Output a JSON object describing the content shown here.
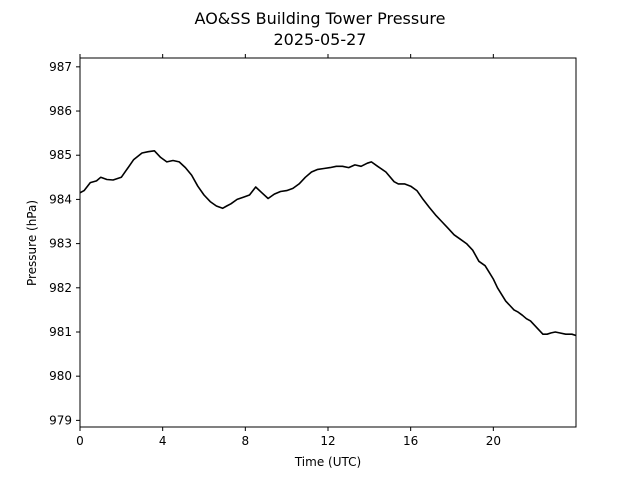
{
  "chart_data": {
    "type": "line",
    "title": "AO&SS Building Tower Pressure",
    "subtitle": "2025-05-27",
    "xlabel": "Time (UTC)",
    "ylabel": "Pressure (hPa)",
    "xlim": [
      0,
      24
    ],
    "ylim": [
      978.85,
      987.2
    ],
    "xticks": [
      0,
      4,
      8,
      12,
      16,
      20
    ],
    "yticks": [
      979,
      980,
      981,
      982,
      983,
      984,
      985,
      986,
      987
    ],
    "grid": false,
    "legend": "none",
    "series": [
      {
        "color": "#000000",
        "x": [
          0,
          0.2,
          0.5,
          0.8,
          1.0,
          1.3,
          1.6,
          2.0,
          2.3,
          2.6,
          3.0,
          3.3,
          3.6,
          3.9,
          4.2,
          4.5,
          4.8,
          5.1,
          5.4,
          5.7,
          6.0,
          6.3,
          6.6,
          6.9,
          7.1,
          7.3,
          7.6,
          7.9,
          8.2,
          8.5,
          8.8,
          9.1,
          9.4,
          9.7,
          10.0,
          10.3,
          10.6,
          10.9,
          11.2,
          11.5,
          11.8,
          12.1,
          12.4,
          12.7,
          13.0,
          13.3,
          13.6,
          13.9,
          14.1,
          14.4,
          14.8,
          15.2,
          15.4,
          15.7,
          16.0,
          16.3,
          16.6,
          16.9,
          17.2,
          17.5,
          17.8,
          18.1,
          18.4,
          18.7,
          19.0,
          19.3,
          19.6,
          19.8,
          20.0,
          20.2,
          20.4,
          20.6,
          20.8,
          21.0,
          21.2,
          21.4,
          21.6,
          21.8,
          22.0,
          22.2,
          22.4,
          22.6,
          22.8,
          23.0,
          23.2,
          23.5,
          23.8,
          24.0
        ],
        "y": [
          984.15,
          984.2,
          984.38,
          984.42,
          984.5,
          984.45,
          984.44,
          984.5,
          984.7,
          984.9,
          985.05,
          985.08,
          985.1,
          984.95,
          984.85,
          984.88,
          984.85,
          984.72,
          984.55,
          984.3,
          984.1,
          983.95,
          983.85,
          983.8,
          983.85,
          983.9,
          984.0,
          984.05,
          984.1,
          984.28,
          984.15,
          984.02,
          984.12,
          984.18,
          984.2,
          984.25,
          984.35,
          984.5,
          984.62,
          984.68,
          984.7,
          984.72,
          984.75,
          984.75,
          984.72,
          984.78,
          984.75,
          984.82,
          984.85,
          984.75,
          984.62,
          984.4,
          984.35,
          984.35,
          984.3,
          984.2,
          984.0,
          983.82,
          983.65,
          983.5,
          983.35,
          983.2,
          983.1,
          983.0,
          982.85,
          982.6,
          982.5,
          982.35,
          982.2,
          982.0,
          981.85,
          981.7,
          981.6,
          981.5,
          981.45,
          981.38,
          981.3,
          981.25,
          981.15,
          981.05,
          980.95,
          980.95,
          980.98,
          981.0,
          980.98,
          980.95,
          980.95,
          980.92
        ]
      }
    ]
  }
}
